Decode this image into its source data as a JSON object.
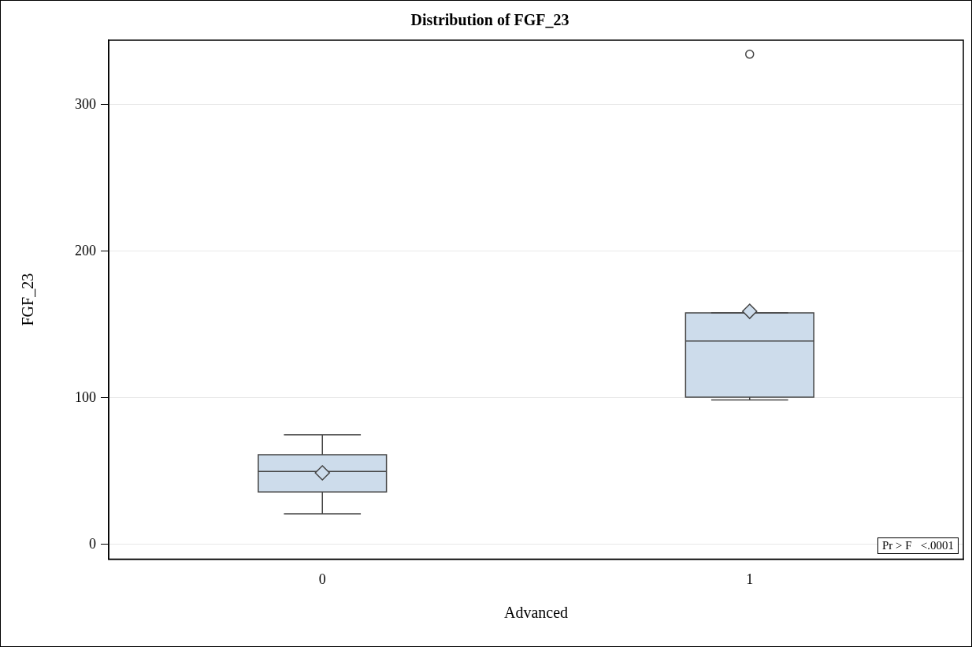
{
  "chart_data": {
    "type": "box",
    "title": "Distribution of FGF_23",
    "xlabel": "Advanced",
    "ylabel": "FGF_23",
    "categories": [
      "0",
      "1"
    ],
    "boxes": [
      {
        "low": 20.8,
        "q1": 35.8,
        "median": 49.8,
        "q3": 61.2,
        "high": 74.7,
        "mean": 48.8
      },
      {
        "low": 98.6,
        "q1": 100.4,
        "median": 138.7,
        "q3": 158,
        "high": 158,
        "mean": 159,
        "outliers": [
          334.4
        ]
      }
    ],
    "color": "#cddceb",
    "ylim": [
      -10,
      344
    ],
    "yticks": [
      0,
      100,
      200,
      300
    ],
    "grid": "y",
    "legend": false,
    "annotations": [
      "Pr > F   <.0001"
    ]
  }
}
